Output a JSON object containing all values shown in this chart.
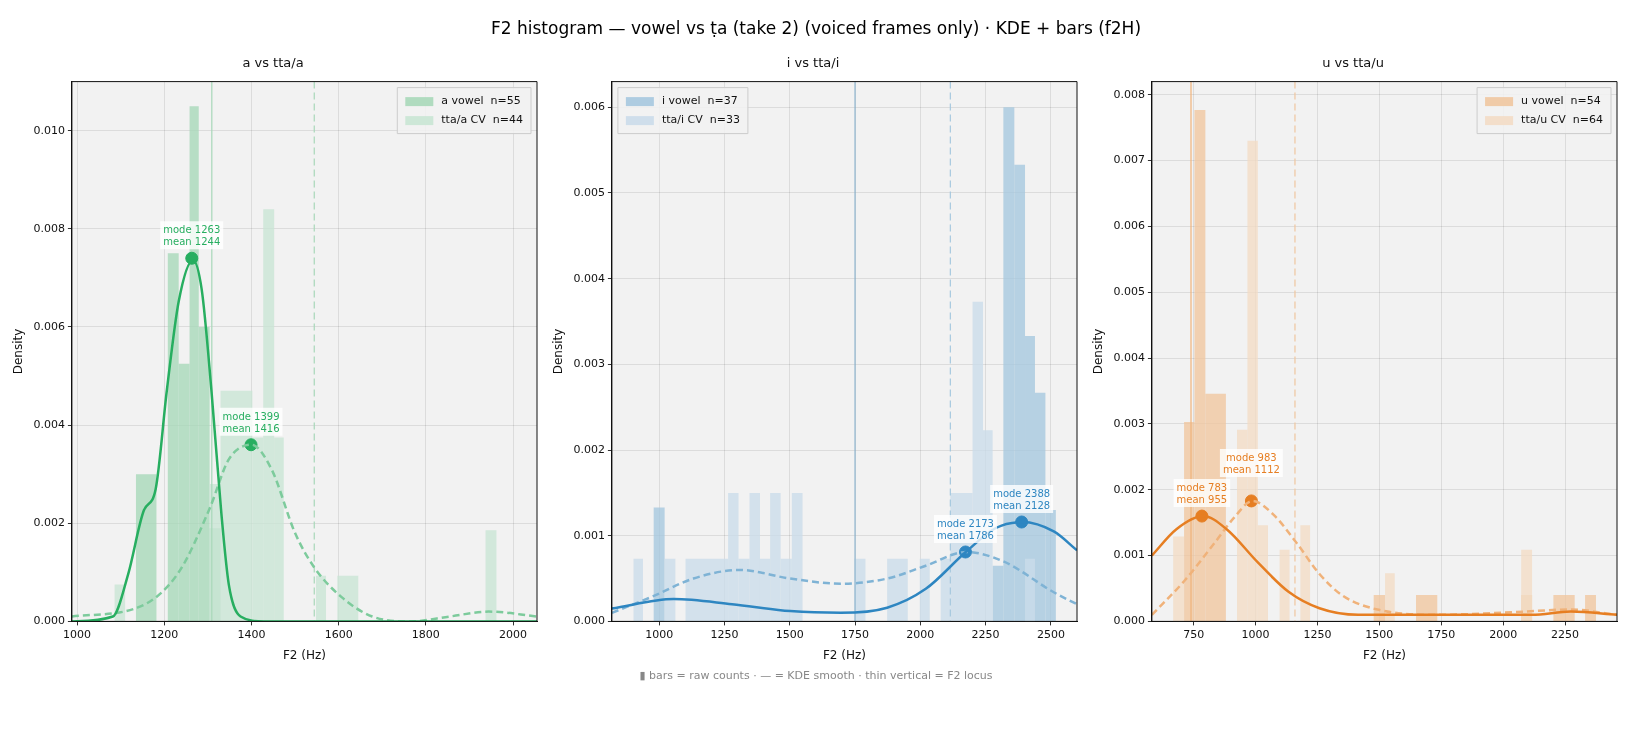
{
  "chart_data": [
    {
      "type": "other",
      "title": "F2 histogram — vowel vs ṭa (take 2) (voiced frames only) · KDE + bars (f2H)",
      "annotations": [
        "▮ bars = raw counts  ·  — = KDE smooth  ·  thin vertical = F2 locus"
      ]
    },
    {
      "type": "histogram",
      "title": "a vs tta/a",
      "xlabel": "F2 (Hz)",
      "ylabel": "Density",
      "xlim": [
        988,
        2055
      ],
      "ylim": [
        0,
        0.011
      ],
      "xticks": [
        1000,
        1200,
        1400,
        1600,
        1800,
        2000
      ],
      "yticks": [
        {
          "value": 0,
          "label": "0.000"
        },
        {
          "value": 0.002,
          "label": "0.002"
        },
        {
          "value": 0.004,
          "label": "0.004"
        },
        {
          "value": 0.006,
          "label": "0.006"
        },
        {
          "value": 0.008,
          "label": "0.008"
        },
        {
          "value": 0.01,
          "label": "0.010"
        }
      ],
      "grid": true,
      "legend": "top right",
      "series": [
        {
          "type": "histogram",
          "name": "a vowel  n=55",
          "color": "#a8d8b9",
          "bins": [
            1135,
            1182,
            1208,
            1233,
            1258,
            1279,
            1304,
            1329
          ],
          "values": [
            0.003,
            0,
            0.0075,
            0.00525,
            0.0105,
            0.006,
            0.0019
          ]
        },
        {
          "type": "histogram",
          "name": "tta/a CV  n=44",
          "color": "#c9e5d4",
          "bins": [
            1086,
            1110,
            1304,
            1329,
            1402,
            1427,
            1452,
            1474,
            1548,
            1571,
            1597,
            1645,
            1937,
            1962
          ],
          "values": [
            0.00075,
            0,
            0.0028,
            0.0047,
            0.00375,
            0.0084,
            0.00375,
            0,
            0.00093,
            0,
            0.00093,
            0,
            0.00186
          ]
        },
        {
          "type": "line",
          "color": "#27ae60",
          "line_style": "solid",
          "x": [
            988,
            1082,
            1117,
            1153,
            1180,
            1206,
            1233,
            1266,
            1286,
            1308,
            1331,
            1348,
            1375,
            1428,
            2055
          ],
          "values": [
            0,
            0.0001,
            0.00096,
            0.00226,
            0.00269,
            0.00472,
            0.00652,
            0.00736,
            0.00675,
            0.00472,
            0.00219,
            0.00075,
            0.0001,
            0,
            0
          ]
        },
        {
          "type": "line",
          "color": "#7dcb9c",
          "line_style": "dashed",
          "x": [
            988,
            1144,
            1233,
            1304,
            1348,
            1400,
            1446,
            1500,
            1544,
            1606,
            1677,
            1766,
            1855,
            1944,
            2055
          ],
          "values": [
            0.0001,
            0.0003,
            0.001,
            0.0023,
            0.0033,
            0.0036,
            0.0031,
            0.0018,
            0.0011,
            0.0005,
            0.0001,
            0,
            0.0001,
            0.0002,
            0.0001
          ]
        },
        {
          "type": "scatter",
          "color": "#27ae60",
          "marker": "circle",
          "x": [
            1263,
            1399
          ],
          "values": [
            0.0074,
            0.0036
          ]
        }
      ],
      "ref_lines": [
        {
          "axis": "x",
          "value": 1309,
          "color": "#a8d8b9",
          "line_style": "solid"
        },
        {
          "axis": "x",
          "value": 1544,
          "color": "#a8d8b9",
          "line_style": "dashed"
        }
      ],
      "annotations": [
        {
          "text": "mode 1263\nmean 1244",
          "x": 1263,
          "y": 0.0074
        },
        {
          "text": "mode 1399\nmean 1416",
          "x": 1399,
          "y": 0.0036
        }
      ]
    },
    {
      "type": "histogram",
      "title": "i vs tta/i",
      "xlabel": "F2 (Hz)",
      "ylabel": "Density",
      "xlim": [
        819,
        2600
      ],
      "ylim": [
        0,
        0.0063
      ],
      "xticks": [
        1000,
        1250,
        1500,
        1750,
        2000,
        2250,
        2500
      ],
      "yticks": [
        {
          "value": 0,
          "label": "0.000"
        },
        {
          "value": 0.001,
          "label": "0.001"
        },
        {
          "value": 0.002,
          "label": "0.002"
        },
        {
          "value": 0.003,
          "label": "0.003"
        },
        {
          "value": 0.004,
          "label": "0.004"
        },
        {
          "value": 0.005,
          "label": "0.005"
        },
        {
          "value": 0.006,
          "label": "0.006"
        }
      ],
      "grid": true,
      "legend": "top left",
      "series": [
        {
          "type": "histogram",
          "name": "i vowel  n=37",
          "color": "#a6c8df",
          "bins": [
            979,
            1021,
            2277,
            2318,
            2360,
            2401,
            2439,
            2479,
            2519
          ],
          "values": [
            0.00133,
            0,
            0.00065,
            0.006,
            0.00533,
            0.00333,
            0.00267,
            0.0013
          ]
        },
        {
          "type": "histogram",
          "name": "tta/i CV  n=33",
          "color": "#cbdcea",
          "bins": [
            902,
            938,
            1021,
            1062,
            1101,
            1264,
            1304,
            1346,
            1386,
            1425,
            1465,
            1508,
            1549,
            1748,
            1790,
            1873,
            1952,
            1998,
            2036,
            2078,
            2115,
            2200,
            2240,
            2277,
            2401,
            2439
          ],
          "values": [
            0.00073,
            0,
            0.00073,
            0,
            0.00073,
            0.0015,
            0.00073,
            0.0015,
            0.00073,
            0.0015,
            0.00073,
            0.0015,
            0,
            0.00073,
            0,
            0.00073,
            0,
            0.00073,
            0,
            0.00073,
            0.0015,
            0.00373,
            0.00223,
            0,
            0.00073
          ]
        },
        {
          "type": "line",
          "color": "#2e86c1",
          "line_style": "solid",
          "x": [
            819,
            1056,
            1279,
            1502,
            1695,
            1873,
            2021,
            2174,
            2289,
            2390,
            2511,
            2600
          ],
          "values": [
            0.00015,
            0.00026,
            0.0002,
            0.00012,
            0.0001,
            0.00016,
            0.00038,
            0.00081,
            0.00109,
            0.00116,
            0.00105,
            0.00083
          ]
        },
        {
          "type": "line",
          "color": "#7fb3d5",
          "line_style": "dashed",
          "x": [
            819,
            982,
            1131,
            1309,
            1502,
            1695,
            1873,
            2021,
            2174,
            2318,
            2511,
            2600
          ],
          "values": [
            0.0001,
            0.0003,
            0.0005,
            0.0006,
            0.0005,
            0.00044,
            0.0005,
            0.00065,
            0.00081,
            0.0007,
            0.00034,
            0.0002
          ]
        },
        {
          "type": "scatter",
          "color": "#2e86c1",
          "marker": "circle",
          "x": [
            2388,
            2173
          ],
          "values": [
            0.00116,
            0.00081
          ]
        }
      ],
      "ref_lines": [
        {
          "axis": "x",
          "value": 1750,
          "color": "#8fb5cf",
          "line_style": "solid"
        },
        {
          "axis": "x",
          "value": 2115,
          "color": "#a6c8df",
          "line_style": "dashed"
        }
      ],
      "annotations": [
        {
          "text": "mode 2388\nmean 2128",
          "x": 2388,
          "y": 0.00116
        },
        {
          "text": "mode 2173\nmean 1786",
          "x": 2173,
          "y": 0.00081
        }
      ]
    },
    {
      "type": "histogram",
      "title": "u vs tta/u",
      "xlabel": "F2 (Hz)",
      "ylabel": "Density",
      "xlim": [
        581,
        2460
      ],
      "ylim": [
        0,
        0.0082
      ],
      "xticks": [
        750,
        1000,
        1250,
        1500,
        1750,
        2000,
        2250
      ],
      "yticks": [
        {
          "value": 0,
          "label": "0.000"
        },
        {
          "value": 0.001,
          "label": "0.001"
        },
        {
          "value": 0.002,
          "label": "0.002"
        },
        {
          "value": 0.003,
          "label": "0.003"
        },
        {
          "value": 0.004,
          "label": "0.004"
        },
        {
          "value": 0.005,
          "label": "0.005"
        },
        {
          "value": 0.006,
          "label": "0.006"
        },
        {
          "value": 0.007,
          "label": "0.007"
        },
        {
          "value": 0.008,
          "label": "0.008"
        }
      ],
      "grid": true,
      "legend": "top right",
      "series": [
        {
          "type": "histogram",
          "name": "u vowel  n=54",
          "color": "#f0c7a0",
          "bins": [
            711,
            753,
            797,
            880,
            1477,
            1523,
            1648,
            1734,
            2073,
            2117,
            2203,
            2289,
            2331,
            2375
          ],
          "values": [
            0.00303,
            0.00777,
            0.00346,
            0,
            0.0004,
            0,
            0.0004,
            0,
            0.0004,
            0,
            0.0004,
            0,
            0.0004
          ]
        },
        {
          "type": "histogram",
          "name": "tta/u CV  n=64",
          "color": "#f3dcc5",
          "bins": [
            667,
            711,
            925,
            967,
            1009,
            1050,
            1097,
            1137,
            1181,
            1220,
            1523,
            1562,
            2073,
            2117
          ],
          "values": [
            0.00129,
            0,
            0.00291,
            0.0073,
            0.00146,
            0,
            0.00109,
            0,
            0.00146,
            0,
            0.00073,
            0,
            0.00109
          ]
        },
        {
          "type": "line",
          "color": "#e67e22",
          "line_style": "solid",
          "x": [
            581,
            680,
            789,
            883,
            1008,
            1133,
            1258,
            1414,
            1648,
            1883,
            2117,
            2273,
            2460
          ],
          "values": [
            0.001,
            0.0014,
            0.0016,
            0.0014,
            0.0009,
            0.00045,
            0.0002,
            0.0001,
            0.0001,
            0.0001,
            0.0001,
            0.00015,
            0.0001
          ]
        },
        {
          "type": "line",
          "color": "#f0b27a",
          "line_style": "dashed",
          "x": [
            581,
            711,
            836,
            914,
            987,
            1070,
            1164,
            1258,
            1352,
            1492,
            1727,
            2039,
            2273,
            2460
          ],
          "values": [
            0.0001,
            0.00061,
            0.0012,
            0.00158,
            0.00183,
            0.00163,
            0.0012,
            0.00072,
            0.00039,
            0.00018,
            0.0001,
            0.00014,
            0.00018,
            0.0001
          ]
        },
        {
          "type": "scatter",
          "color": "#e67e22",
          "marker": "circle",
          "x": [
            783,
            983
          ],
          "values": [
            0.0016,
            0.00183
          ]
        }
      ],
      "ref_lines": [
        {
          "axis": "x",
          "value": 739,
          "color": "#f0b27a",
          "line_style": "solid"
        },
        {
          "axis": "x",
          "value": 1159,
          "color": "#f0c7a0",
          "line_style": "dashed"
        }
      ],
      "annotations": [
        {
          "text": "mode 783\nmean 955",
          "x": 783,
          "y": 0.0016
        },
        {
          "text": "mode 983\nmean 1112",
          "x": 983,
          "y": 0.00183
        }
      ]
    }
  ]
}
